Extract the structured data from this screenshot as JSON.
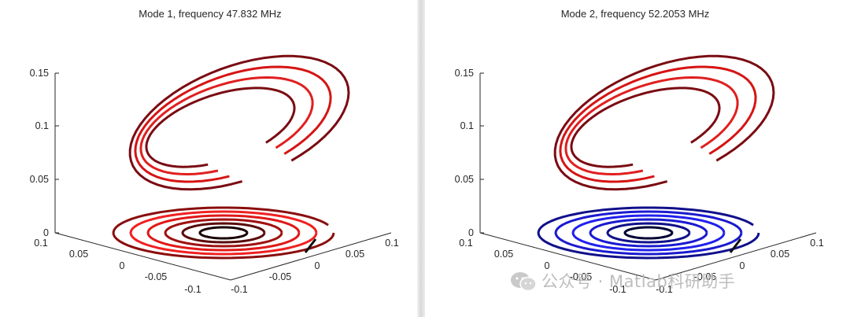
{
  "chart_data": [
    {
      "type": "3d-line",
      "title": "Mode 1, frequency 47.832 MHz",
      "z_ticks": [
        "0.15",
        "0.1",
        "0.05",
        "0"
      ],
      "x_ticks": [
        "0.1",
        "0.05",
        "0",
        "-0.05",
        "-0.1"
      ],
      "y_ticks": [
        "-0.1",
        "-0.05",
        "0",
        "0.05",
        "0.1"
      ],
      "xlim": [
        -0.1,
        0.1
      ],
      "ylim": [
        -0.1,
        0.1
      ],
      "zlim": [
        0,
        0.15
      ],
      "series": [
        {
          "name": "tilted ellipse loops",
          "z_level": 0.13,
          "loops": 4,
          "colors": [
            "#7a0b12",
            "#d61414",
            "#e01f1f",
            "#7a0b12"
          ]
        },
        {
          "name": "base spiral",
          "z_level": 0.0,
          "loops": 6,
          "colors": [
            "#1a0000",
            "#5a0a0a",
            "#a01010",
            "#e01818",
            "#f02020",
            "#8a0d0d"
          ]
        }
      ]
    },
    {
      "type": "3d-line",
      "title": "Mode 2, frequency 52.2053 MHz",
      "z_ticks": [
        "0.15",
        "0.1",
        "0.05",
        "0"
      ],
      "x_ticks": [
        "0.1",
        "0.05",
        "0",
        "-0.05",
        "-0.1"
      ],
      "y_ticks": [
        "-0.1",
        "-0.05",
        "0",
        "0.05",
        "0.1"
      ],
      "xlim": [
        -0.1,
        0.1
      ],
      "ylim": [
        -0.1,
        0.1
      ],
      "zlim": [
        0,
        0.15
      ],
      "series": [
        {
          "name": "tilted ellipse loops",
          "z_level": 0.13,
          "loops": 4,
          "colors": [
            "#7a0b12",
            "#d61414",
            "#e01f1f",
            "#7a0b12"
          ]
        },
        {
          "name": "base spiral",
          "z_level": 0.0,
          "loops": 6,
          "colors": [
            "#000033",
            "#10108a",
            "#1a1ad0",
            "#2020ee",
            "#1a1ad0",
            "#10108a"
          ]
        }
      ]
    }
  ],
  "watermark": {
    "text": "公众号 · Matlab科研助手",
    "icon": "wechat-icon"
  }
}
